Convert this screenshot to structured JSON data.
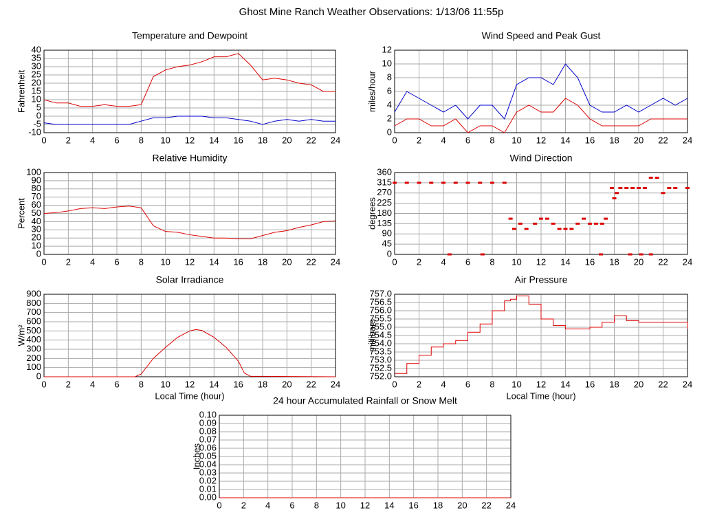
{
  "title": "Ghost Mine Ranch Weather Observations: 1/13/06 11:55p",
  "chart_data": [
    {
      "type": "line",
      "title": "Temperature and Dewpoint",
      "y_label": "Fahrenheit",
      "x": [
        0,
        1,
        2,
        3,
        4,
        5,
        6,
        7,
        8,
        9,
        10,
        11,
        12,
        13,
        14,
        15,
        16,
        17,
        18,
        19,
        20,
        21,
        22,
        23,
        24
      ],
      "series": [
        {
          "color": "#dd0000",
          "values": [
            10,
            8,
            8,
            6,
            6,
            7,
            6,
            6,
            7,
            24,
            28,
            30,
            31,
            33,
            36,
            36,
            38,
            31,
            22,
            23,
            22,
            20,
            19,
            15,
            15
          ]
        },
        {
          "color": "#0000cc",
          "values": [
            -4,
            -5,
            -5,
            -5,
            -5,
            -5,
            -5,
            -5,
            -3,
            -1,
            -1,
            0,
            0,
            0,
            -1,
            -1,
            -2,
            -3,
            -5,
            -3,
            -2,
            -3,
            -2,
            -3,
            -3
          ]
        }
      ],
      "xlim": [
        0,
        24
      ],
      "xticks": [
        0,
        2,
        4,
        6,
        8,
        10,
        12,
        14,
        16,
        18,
        20,
        22,
        24
      ],
      "ylim": [
        -10,
        40
      ],
      "yticks": [
        -10,
        -5,
        0,
        5,
        10,
        15,
        20,
        25,
        30,
        35,
        40
      ],
      "grid": true
    },
    {
      "type": "line",
      "title": "Wind Speed and Peak Gust",
      "y_label": "miles/hour",
      "x": [
        0,
        1,
        2,
        3,
        4,
        5,
        6,
        7,
        8,
        9,
        10,
        11,
        12,
        13,
        14,
        15,
        16,
        17,
        18,
        19,
        20,
        21,
        22,
        23,
        24
      ],
      "series": [
        {
          "color": "#0000cc",
          "values": [
            3,
            6,
            5,
            4,
            3,
            4,
            2,
            4,
            4,
            2,
            7,
            8,
            8,
            7,
            10,
            8,
            4,
            3,
            3,
            4,
            3,
            4,
            5,
            4,
            5
          ]
        },
        {
          "color": "#dd0000",
          "values": [
            1,
            2,
            2,
            1,
            1,
            2,
            0,
            1,
            1,
            0,
            3,
            4,
            3,
            3,
            5,
            4,
            2,
            1,
            1,
            1,
            1,
            2,
            2,
            2,
            2
          ]
        }
      ],
      "xlim": [
        0,
        24
      ],
      "xticks": [
        0,
        2,
        4,
        6,
        8,
        10,
        12,
        14,
        16,
        18,
        20,
        22,
        24
      ],
      "ylim": [
        0,
        12
      ],
      "yticks": [
        0,
        2,
        4,
        6,
        8,
        10,
        12
      ],
      "grid": true
    },
    {
      "type": "line",
      "title": "Relative Humidity",
      "y_label": "Percent",
      "x": [
        0,
        1,
        2,
        3,
        4,
        5,
        6,
        7,
        8,
        9,
        10,
        11,
        12,
        13,
        14,
        15,
        16,
        17,
        18,
        19,
        20,
        21,
        22,
        23,
        24
      ],
      "series": [
        {
          "color": "#dd0000",
          "values": [
            50,
            51,
            53,
            56,
            57,
            56,
            58,
            59,
            57,
            35,
            28,
            27,
            24,
            22,
            20,
            20,
            19,
            19,
            23,
            27,
            29,
            33,
            36,
            40,
            41
          ]
        }
      ],
      "xlim": [
        0,
        24
      ],
      "xticks": [
        0,
        2,
        4,
        6,
        8,
        10,
        12,
        14,
        16,
        18,
        20,
        22,
        24
      ],
      "ylim": [
        0,
        100
      ],
      "yticks": [
        0,
        10,
        20,
        30,
        40,
        50,
        60,
        70,
        80,
        90,
        100
      ],
      "grid": true
    },
    {
      "type": "scatter",
      "title": "Wind Direction",
      "y_label": "degrees",
      "x": [
        0,
        1,
        2,
        3,
        4,
        5,
        6,
        7,
        8,
        9,
        4.5,
        7.2,
        9.5,
        9.8,
        10.3,
        10.8,
        11.5,
        12,
        12.5,
        13,
        13.5,
        14,
        14.5,
        15,
        15.5,
        16,
        16.5,
        17,
        17.3,
        17.8,
        18,
        18.2,
        18.5,
        19,
        19.5,
        20,
        20.5,
        21,
        21.5,
        22,
        22.5,
        23,
        24,
        19.3,
        20.2,
        21,
        16.9
      ],
      "series": [
        {
          "color": "#dd0000",
          "values": [
            315,
            315,
            315,
            315,
            315,
            315,
            315,
            315,
            315,
            315,
            0,
            0,
            157,
            112,
            135,
            112,
            135,
            157,
            157,
            135,
            112,
            112,
            112,
            135,
            157,
            135,
            135,
            135,
            157,
            292,
            247,
            270,
            292,
            292,
            292,
            292,
            292,
            337,
            337,
            270,
            292,
            292,
            292,
            0,
            0,
            0,
            0
          ]
        }
      ],
      "xlim": [
        0,
        24
      ],
      "xticks": [
        0,
        2,
        4,
        6,
        8,
        10,
        12,
        14,
        16,
        18,
        20,
        22,
        24
      ],
      "ylim": [
        0,
        360
      ],
      "yticks": [
        0,
        45,
        90,
        135,
        180,
        225,
        270,
        315,
        360
      ],
      "grid": true
    },
    {
      "type": "line",
      "title": "Solar Irradiance",
      "y_label": "W/m²",
      "x_label": "Local Time (hour)",
      "x": [
        0,
        7.5,
        8,
        9,
        10,
        11,
        12,
        12.5,
        13,
        14,
        15,
        16,
        16.5,
        17,
        24
      ],
      "series": [
        {
          "color": "#dd0000",
          "values": [
            0,
            0,
            30,
            200,
            320,
            430,
            500,
            515,
            505,
            430,
            320,
            170,
            40,
            5,
            0
          ]
        }
      ],
      "xlim": [
        0,
        24
      ],
      "xticks": [
        0,
        2,
        4,
        6,
        8,
        10,
        12,
        14,
        16,
        18,
        20,
        22,
        24
      ],
      "ylim": [
        0,
        900
      ],
      "yticks": [
        0,
        100,
        200,
        300,
        400,
        500,
        600,
        700,
        800,
        900
      ],
      "grid": true
    },
    {
      "type": "line",
      "step": true,
      "title": "Air Pressure",
      "y_label": "millibars",
      "x_label": "Local Time (hour)",
      "x": [
        0,
        1,
        2,
        3,
        4,
        5,
        6,
        7,
        8,
        9,
        9.5,
        10,
        11,
        12,
        13,
        14,
        15,
        16,
        17,
        18,
        19,
        20,
        21,
        22,
        23,
        24
      ],
      "series": [
        {
          "color": "#dd0000",
          "values": [
            752.2,
            752.8,
            753.3,
            753.8,
            754.0,
            754.2,
            754.7,
            755.2,
            756.0,
            756.6,
            756.7,
            756.9,
            756.4,
            755.5,
            755.1,
            754.9,
            754.9,
            755.0,
            755.3,
            755.7,
            755.4,
            755.3,
            755.3,
            755.3,
            755.3,
            754.9
          ]
        }
      ],
      "xlim": [
        0,
        24
      ],
      "xticks": [
        0,
        2,
        4,
        6,
        8,
        10,
        12,
        14,
        16,
        18,
        20,
        22,
        24
      ],
      "ylim": [
        752,
        757
      ],
      "yticks": [
        {
          "value": 752,
          "label": "752.0"
        },
        752.5,
        {
          "value": 753,
          "label": "753.0"
        },
        753.5,
        {
          "value": 754,
          "label": "754.0"
        },
        754.5,
        {
          "value": 755,
          "label": "755.0"
        },
        755.5,
        {
          "value": 756,
          "label": "756.0"
        },
        756.5,
        {
          "value": 757,
          "label": "757.0"
        }
      ],
      "grid": true
    },
    {
      "type": "line",
      "title": "24 hour Accumulated Rainfall or Snow Melt",
      "y_label": "Inches",
      "x": [
        0,
        24
      ],
      "series": [
        {
          "color": "#dd0000",
          "values": [
            0,
            0
          ]
        }
      ],
      "xlim": [
        0,
        24
      ],
      "xticks": [
        0,
        2,
        4,
        6,
        8,
        10,
        12,
        14,
        16,
        18,
        20,
        22,
        24
      ],
      "ylim": [
        0,
        0.1
      ],
      "yticks": [
        {
          "value": 0,
          "label": "0.00"
        },
        0.01,
        0.02,
        0.03,
        0.04,
        0.05,
        0.06,
        0.07,
        0.08,
        0.09,
        {
          "value": 0.1,
          "label": "0.10"
        }
      ],
      "grid": true
    }
  ]
}
